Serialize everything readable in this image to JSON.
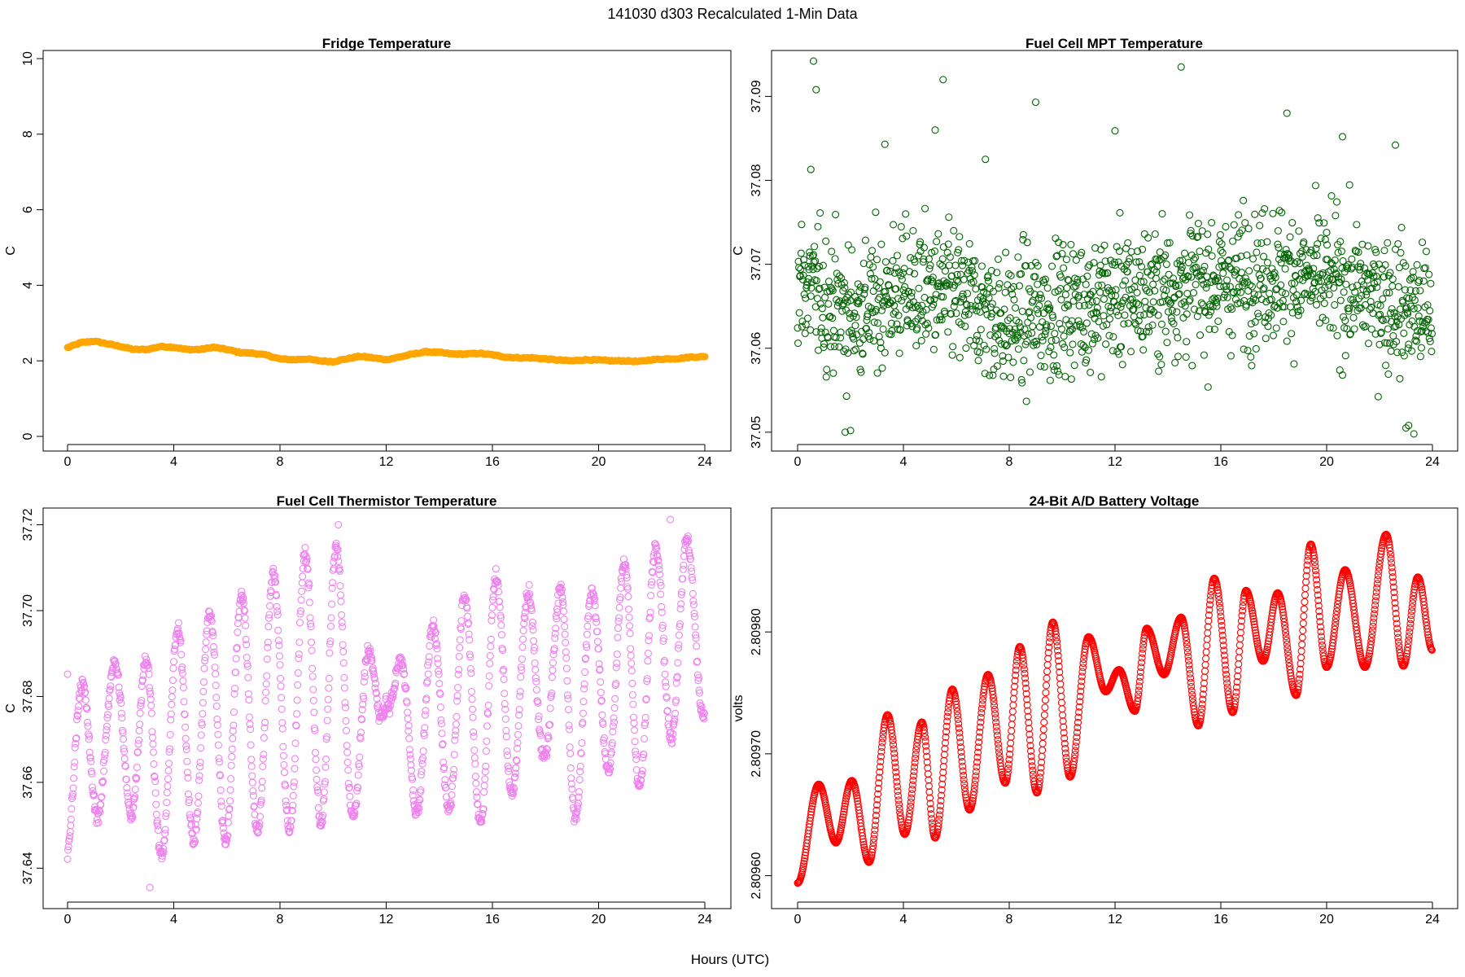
{
  "figure": {
    "suptitle": "141030   d303   Recalculated 1-Min Data",
    "xlabel": "Hours (UTC)"
  },
  "chart_data": [
    {
      "id": "fridge",
      "type": "scatter",
      "title": "Fridge Temperature",
      "ylabel": "C",
      "color": "#FFA500",
      "marker": "filled-thick",
      "xlim": [
        0,
        24
      ],
      "ylim": [
        0,
        10
      ],
      "xticks": [
        0,
        4,
        8,
        12,
        16,
        20,
        24
      ],
      "yticks": [
        0,
        2,
        4,
        6,
        8,
        10
      ],
      "ytick_labels": [
        "0",
        "2",
        "4",
        "6",
        "8",
        "10"
      ],
      "series": [
        {
          "name": "Fridge Temperature",
          "x": [
            0,
            0.5,
            1,
            1.5,
            2,
            2.5,
            3,
            3.5,
            4,
            4.5,
            5,
            5.5,
            6,
            6.5,
            7,
            7.5,
            8,
            8.5,
            9,
            9.5,
            10,
            10.5,
            11,
            11.5,
            12,
            12.5,
            13,
            13.5,
            14,
            14.5,
            15,
            15.5,
            16,
            16.5,
            17,
            17.5,
            18,
            18.5,
            19,
            19.5,
            20,
            20.5,
            21,
            21.5,
            22,
            22.5,
            23,
            23.5,
            24
          ],
          "y": [
            2.35,
            2.48,
            2.52,
            2.45,
            2.38,
            2.3,
            2.3,
            2.38,
            2.36,
            2.3,
            2.3,
            2.36,
            2.3,
            2.22,
            2.2,
            2.15,
            2.05,
            2.03,
            2.05,
            2.0,
            1.98,
            2.05,
            2.12,
            2.08,
            2.03,
            2.1,
            2.18,
            2.24,
            2.22,
            2.18,
            2.18,
            2.2,
            2.16,
            2.1,
            2.08,
            2.08,
            2.05,
            2.02,
            2.0,
            2.03,
            2.02,
            2.0,
            2.0,
            1.98,
            2.03,
            2.05,
            2.06,
            2.1,
            2.11
          ]
        }
      ]
    },
    {
      "id": "mpt",
      "type": "scatter",
      "title": "Fuel Cell MPT Temperature",
      "ylabel": "C",
      "color": "#006400",
      "marker": "open-circle",
      "xlim": [
        0,
        24
      ],
      "ylim": [
        37.0495,
        37.0945
      ],
      "xticks": [
        0,
        4,
        8,
        12,
        16,
        20,
        24
      ],
      "yticks": [
        37.05,
        37.06,
        37.07,
        37.08,
        37.09
      ],
      "ytick_labels": [
        "37.05",
        "37.06",
        "37.07",
        "37.08",
        "37.09"
      ],
      "summary": "approx 1440 one-minute samples scattered around 37.066 C (range ~37.050 to ~37.094), roughly one sample every 0.06 h across the day",
      "points_per_hour": 16,
      "center_anchors": [
        [
          0,
          37.068
        ],
        [
          2,
          37.064
        ],
        [
          4,
          37.067
        ],
        [
          6,
          37.066
        ],
        [
          8,
          37.063
        ],
        [
          10,
          37.065
        ],
        [
          12,
          37.066
        ],
        [
          14,
          37.067
        ],
        [
          16,
          37.068
        ],
        [
          18,
          37.069
        ],
        [
          20,
          37.068
        ],
        [
          22,
          37.066
        ],
        [
          24,
          37.064
        ]
      ],
      "spread": 0.0065,
      "outliers": [
        [
          0.6,
          37.0942
        ],
        [
          0.7,
          37.0908
        ],
        [
          5.5,
          37.092
        ],
        [
          14.5,
          37.0935
        ],
        [
          9,
          37.0893
        ],
        [
          18.5,
          37.088
        ],
        [
          5.2,
          37.086
        ],
        [
          0.5,
          37.0813
        ],
        [
          1.8,
          37.05
        ],
        [
          2.0,
          37.0502
        ],
        [
          23.0,
          37.0505
        ],
        [
          23.1,
          37.0508
        ],
        [
          23.3,
          37.0498
        ],
        [
          3.3,
          37.0843
        ],
        [
          7.1,
          37.0825
        ],
        [
          12.0,
          37.0859
        ],
        [
          20.6,
          37.0852
        ],
        [
          22.6,
          37.0842
        ]
      ]
    },
    {
      "id": "thermistor",
      "type": "scatter",
      "title": "Fuel Cell Thermistor Temperature",
      "ylabel": "C",
      "color": "#EE82EE",
      "marker": "open-circle",
      "xlim": [
        0,
        24
      ],
      "ylim": [
        37.634,
        37.722
      ],
      "xticks": [
        0,
        4,
        8,
        12,
        16,
        20,
        24
      ],
      "yticks": [
        37.64,
        37.66,
        37.68,
        37.7,
        37.72
      ],
      "ytick_labels": [
        "37.64",
        "37.66",
        "37.68",
        "37.70",
        "37.72"
      ],
      "summary": "approx 1440 one-minute samples oscillating with ~1.2 h period between ~37.635 and ~37.721",
      "points_per_hour": 60,
      "period_hours": 1.2,
      "phase_hours": 0.25,
      "envelope": [
        [
          0,
          37.641,
          37.684
        ],
        [
          1,
          37.65,
          37.684
        ],
        [
          2,
          37.66,
          37.69
        ],
        [
          3,
          37.637,
          37.69
        ],
        [
          4,
          37.645,
          37.696
        ],
        [
          6,
          37.645,
          37.703
        ],
        [
          8,
          37.648,
          37.711
        ],
        [
          9,
          37.645,
          37.715
        ],
        [
          10,
          37.652,
          37.72
        ],
        [
          11,
          37.65,
          37.692
        ],
        [
          12,
          37.678,
          37.69
        ],
        [
          13,
          37.652,
          37.688
        ],
        [
          14,
          37.655,
          37.7
        ],
        [
          15,
          37.648,
          37.705
        ],
        [
          16,
          37.65,
          37.71
        ],
        [
          17,
          37.658,
          37.705
        ],
        [
          18,
          37.665,
          37.705
        ],
        [
          19,
          37.648,
          37.708
        ],
        [
          20,
          37.665,
          37.705
        ],
        [
          21,
          37.655,
          37.713
        ],
        [
          22,
          37.66,
          37.716
        ],
        [
          23,
          37.672,
          37.721
        ],
        [
          24,
          37.675,
          37.711
        ]
      ],
      "extremes": [
        [
          3.1,
          37.6355
        ],
        [
          10.2,
          37.72
        ],
        [
          22.7,
          37.7212
        ],
        [
          0.0,
          37.6852
        ]
      ]
    },
    {
      "id": "voltage",
      "type": "scatter",
      "title": "24-Bit A/D Battery Voltage",
      "ylabel": "volts",
      "color": "#FF0000",
      "marker": "open-circle",
      "xlim": [
        0,
        24
      ],
      "ylim": [
        2.809585,
        2.809895
      ],
      "xticks": [
        0,
        4,
        8,
        12,
        16,
        20,
        24
      ],
      "yticks": [
        2.8096,
        2.8097,
        2.8098
      ],
      "ytick_labels": [
        "2.80960",
        "2.80970",
        "2.80980"
      ],
      "summary": "approx 1440 one-minute samples; voltage rises from 2.80959 to ~2.80988 with a regular oscillation of ~1.25 h period",
      "points_per_hour": 60,
      "peaks": [
        [
          0.8,
          2.809675
        ],
        [
          2.05,
          2.809678
        ],
        [
          3.4,
          2.809732
        ],
        [
          4.7,
          2.809726
        ],
        [
          5.85,
          2.809753
        ],
        [
          7.2,
          2.809765
        ],
        [
          8.4,
          2.809788
        ],
        [
          9.65,
          2.809808
        ],
        [
          11.0,
          2.809796
        ],
        [
          12.15,
          2.809769
        ],
        [
          13.2,
          2.809803
        ],
        [
          14.5,
          2.809812
        ],
        [
          15.75,
          2.809844
        ],
        [
          16.95,
          2.809834
        ],
        [
          18.15,
          2.809832
        ],
        [
          19.4,
          2.809872
        ],
        [
          20.7,
          2.809851
        ],
        [
          22.25,
          2.80988
        ],
        [
          23.45,
          2.809845
        ]
      ],
      "troughs": [
        [
          0,
          2.809594
        ],
        [
          1.45,
          2.809627
        ],
        [
          2.7,
          2.809611
        ],
        [
          4.05,
          2.809634
        ],
        [
          5.2,
          2.809631
        ],
        [
          6.5,
          2.809654
        ],
        [
          7.85,
          2.809676
        ],
        [
          9.05,
          2.809668
        ],
        [
          10.3,
          2.809681
        ],
        [
          11.65,
          2.809751
        ],
        [
          12.75,
          2.809735
        ],
        [
          13.85,
          2.809765
        ],
        [
          15.15,
          2.809723
        ],
        [
          16.45,
          2.809734
        ],
        [
          17.6,
          2.809776
        ],
        [
          18.85,
          2.809748
        ],
        [
          20.0,
          2.809771
        ],
        [
          21.45,
          2.809771
        ],
        [
          22.9,
          2.809772
        ],
        [
          24,
          2.809785
        ]
      ]
    }
  ]
}
